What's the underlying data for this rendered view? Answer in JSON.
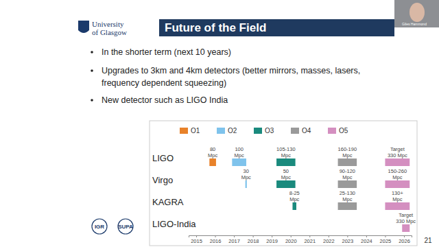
{
  "header": {
    "title": "Future of the Field",
    "logo_text": [
      "University",
      "of Glasgow"
    ]
  },
  "speaker": "Giles Hammond",
  "bullets": [
    [
      "In the shorter term (next 10 years)"
    ],
    [
      "Upgrades to 3km and 4km detectors (better mirrors, masses, lasers,",
      "frequency dependent squeezing)"
    ],
    [
      "New detector such as LIGO India"
    ]
  ],
  "footer_logos": [
    "IGR",
    "SUPA"
  ],
  "page_number": "21",
  "chart_data": {
    "type": "timeline",
    "orientation": "horizontal",
    "legend": "top",
    "categories": [
      "LIGO",
      "Virgo",
      "KAGRA",
      "LIGO-India"
    ],
    "xlim": [
      2014.6,
      2026.4
    ],
    "xticks": [
      2015,
      2016,
      2017,
      2018,
      2019,
      2020,
      2021,
      2022,
      2023,
      2024,
      2025,
      2026
    ],
    "series": [
      {
        "name": "O1",
        "color": "#e8822a",
        "start": [
          2015.7,
          null,
          null,
          null
        ],
        "end": [
          2016.05,
          null,
          null,
          null
        ],
        "labels": [
          [
            "80",
            "Mpc"
          ],
          null,
          null,
          null
        ]
      },
      {
        "name": "O2",
        "color": "#7fc3ec",
        "start": [
          2016.9,
          2017.6,
          null,
          null
        ],
        "end": [
          2017.65,
          2017.68,
          null,
          null
        ],
        "labels": [
          [
            "100",
            "Mpc"
          ],
          [
            "30",
            "Mpc"
          ],
          null,
          null
        ]
      },
      {
        "name": "O3",
        "color": "#1a8a7d",
        "start": [
          2019.25,
          2019.25,
          2020.1,
          null
        ],
        "end": [
          2020.25,
          2020.25,
          2020.3,
          null
        ],
        "labels": [
          [
            "105-130",
            "Mpc"
          ],
          [
            "50",
            "Mpc"
          ],
          [
            "8-25",
            "Mpc"
          ],
          null
        ]
      },
      {
        "name": "O4",
        "color": "#9a9a9a",
        "start": [
          2022.5,
          2022.5,
          2022.5,
          null
        ],
        "end": [
          2023.5,
          2023.5,
          2023.5,
          null
        ],
        "labels": [
          [
            "160-190",
            "Mpc"
          ],
          [
            "90-120",
            "Mpc"
          ],
          [
            "25-130",
            "Mpc"
          ],
          null
        ]
      },
      {
        "name": "O5",
        "color": "#d48fc0",
        "start": [
          2025.0,
          2025.0,
          2025.0,
          2025.9
        ],
        "end": [
          2026.3,
          2026.3,
          2026.3,
          2026.3
        ],
        "labels": [
          [
            "Target",
            "330 Mpc"
          ],
          [
            "150-260",
            "Mpc"
          ],
          [
            "130+",
            "Mpc"
          ],
          [
            "Target",
            "330 Mpc"
          ]
        ]
      }
    ]
  }
}
